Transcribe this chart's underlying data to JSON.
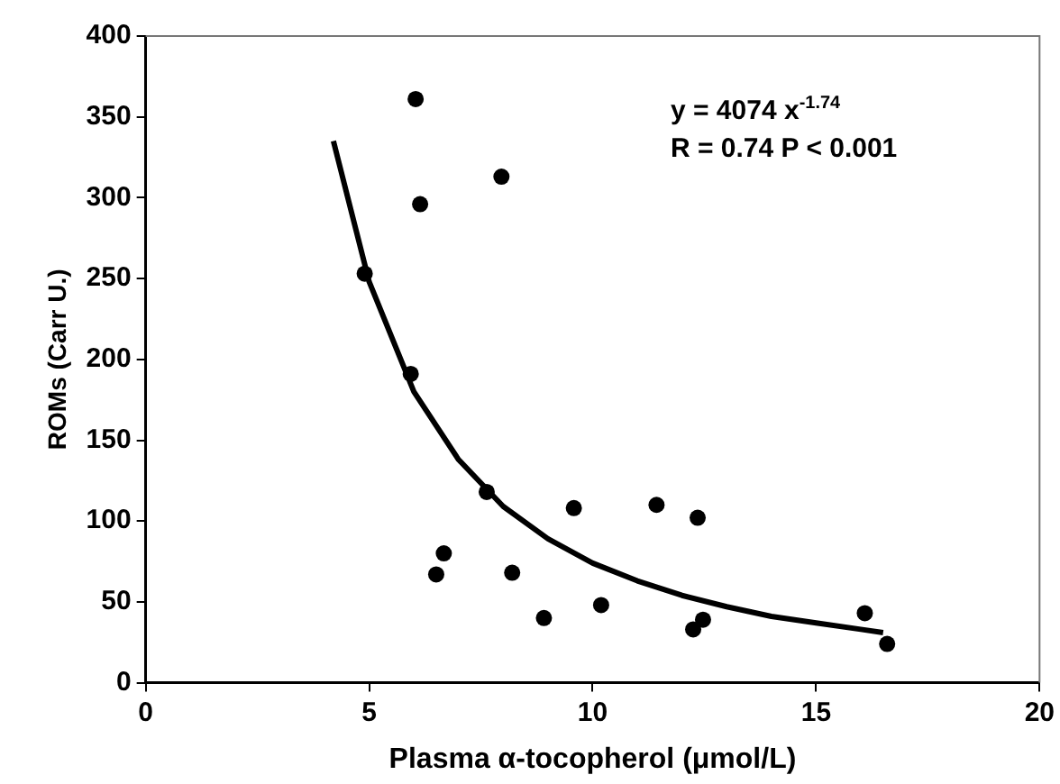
{
  "chart_data": {
    "type": "scatter",
    "xlabel": "Plasma α-tocopherol (μmol/L)",
    "ylabel": "ROMs (Carr U.)",
    "xlim": [
      0,
      20
    ],
    "xticks": [
      0,
      5,
      10,
      15,
      20
    ],
    "ylim": [
      0,
      400
    ],
    "yticks": [
      0,
      50,
      100,
      150,
      200,
      250,
      300,
      350,
      400
    ],
    "grid": false,
    "legend": false,
    "marker": "circle",
    "annotations": [
      "y = 4074 x$^{-1.74}$",
      "R = 0.74 P < 0.001"
    ],
    "series": [
      {
        "color": "#000000",
        "x": [
          6.04,
          7.96,
          6.14,
          4.9,
          5.93,
          7.63,
          9.58,
          6.67,
          6.5,
          8.2,
          8.91,
          11.43,
          12.35,
          10.19,
          12.25,
          12.47,
          16.09,
          16.59
        ],
        "values": [
          361,
          313,
          296,
          253,
          191,
          118,
          108,
          80,
          67,
          68,
          40,
          110,
          102,
          48,
          33,
          39,
          43,
          24
        ]
      },
      {
        "type": "line",
        "color": "#000000",
        "marker": "none",
        "line_style": "solid",
        "x": [
          4.2,
          5,
          6,
          7,
          8,
          9,
          10,
          11,
          12,
          13,
          14,
          15,
          16,
          16.5
        ],
        "values": [
          335,
          248,
          180,
          138,
          109,
          89,
          74,
          63,
          54,
          47,
          41,
          37,
          33,
          31
        ]
      }
    ]
  }
}
